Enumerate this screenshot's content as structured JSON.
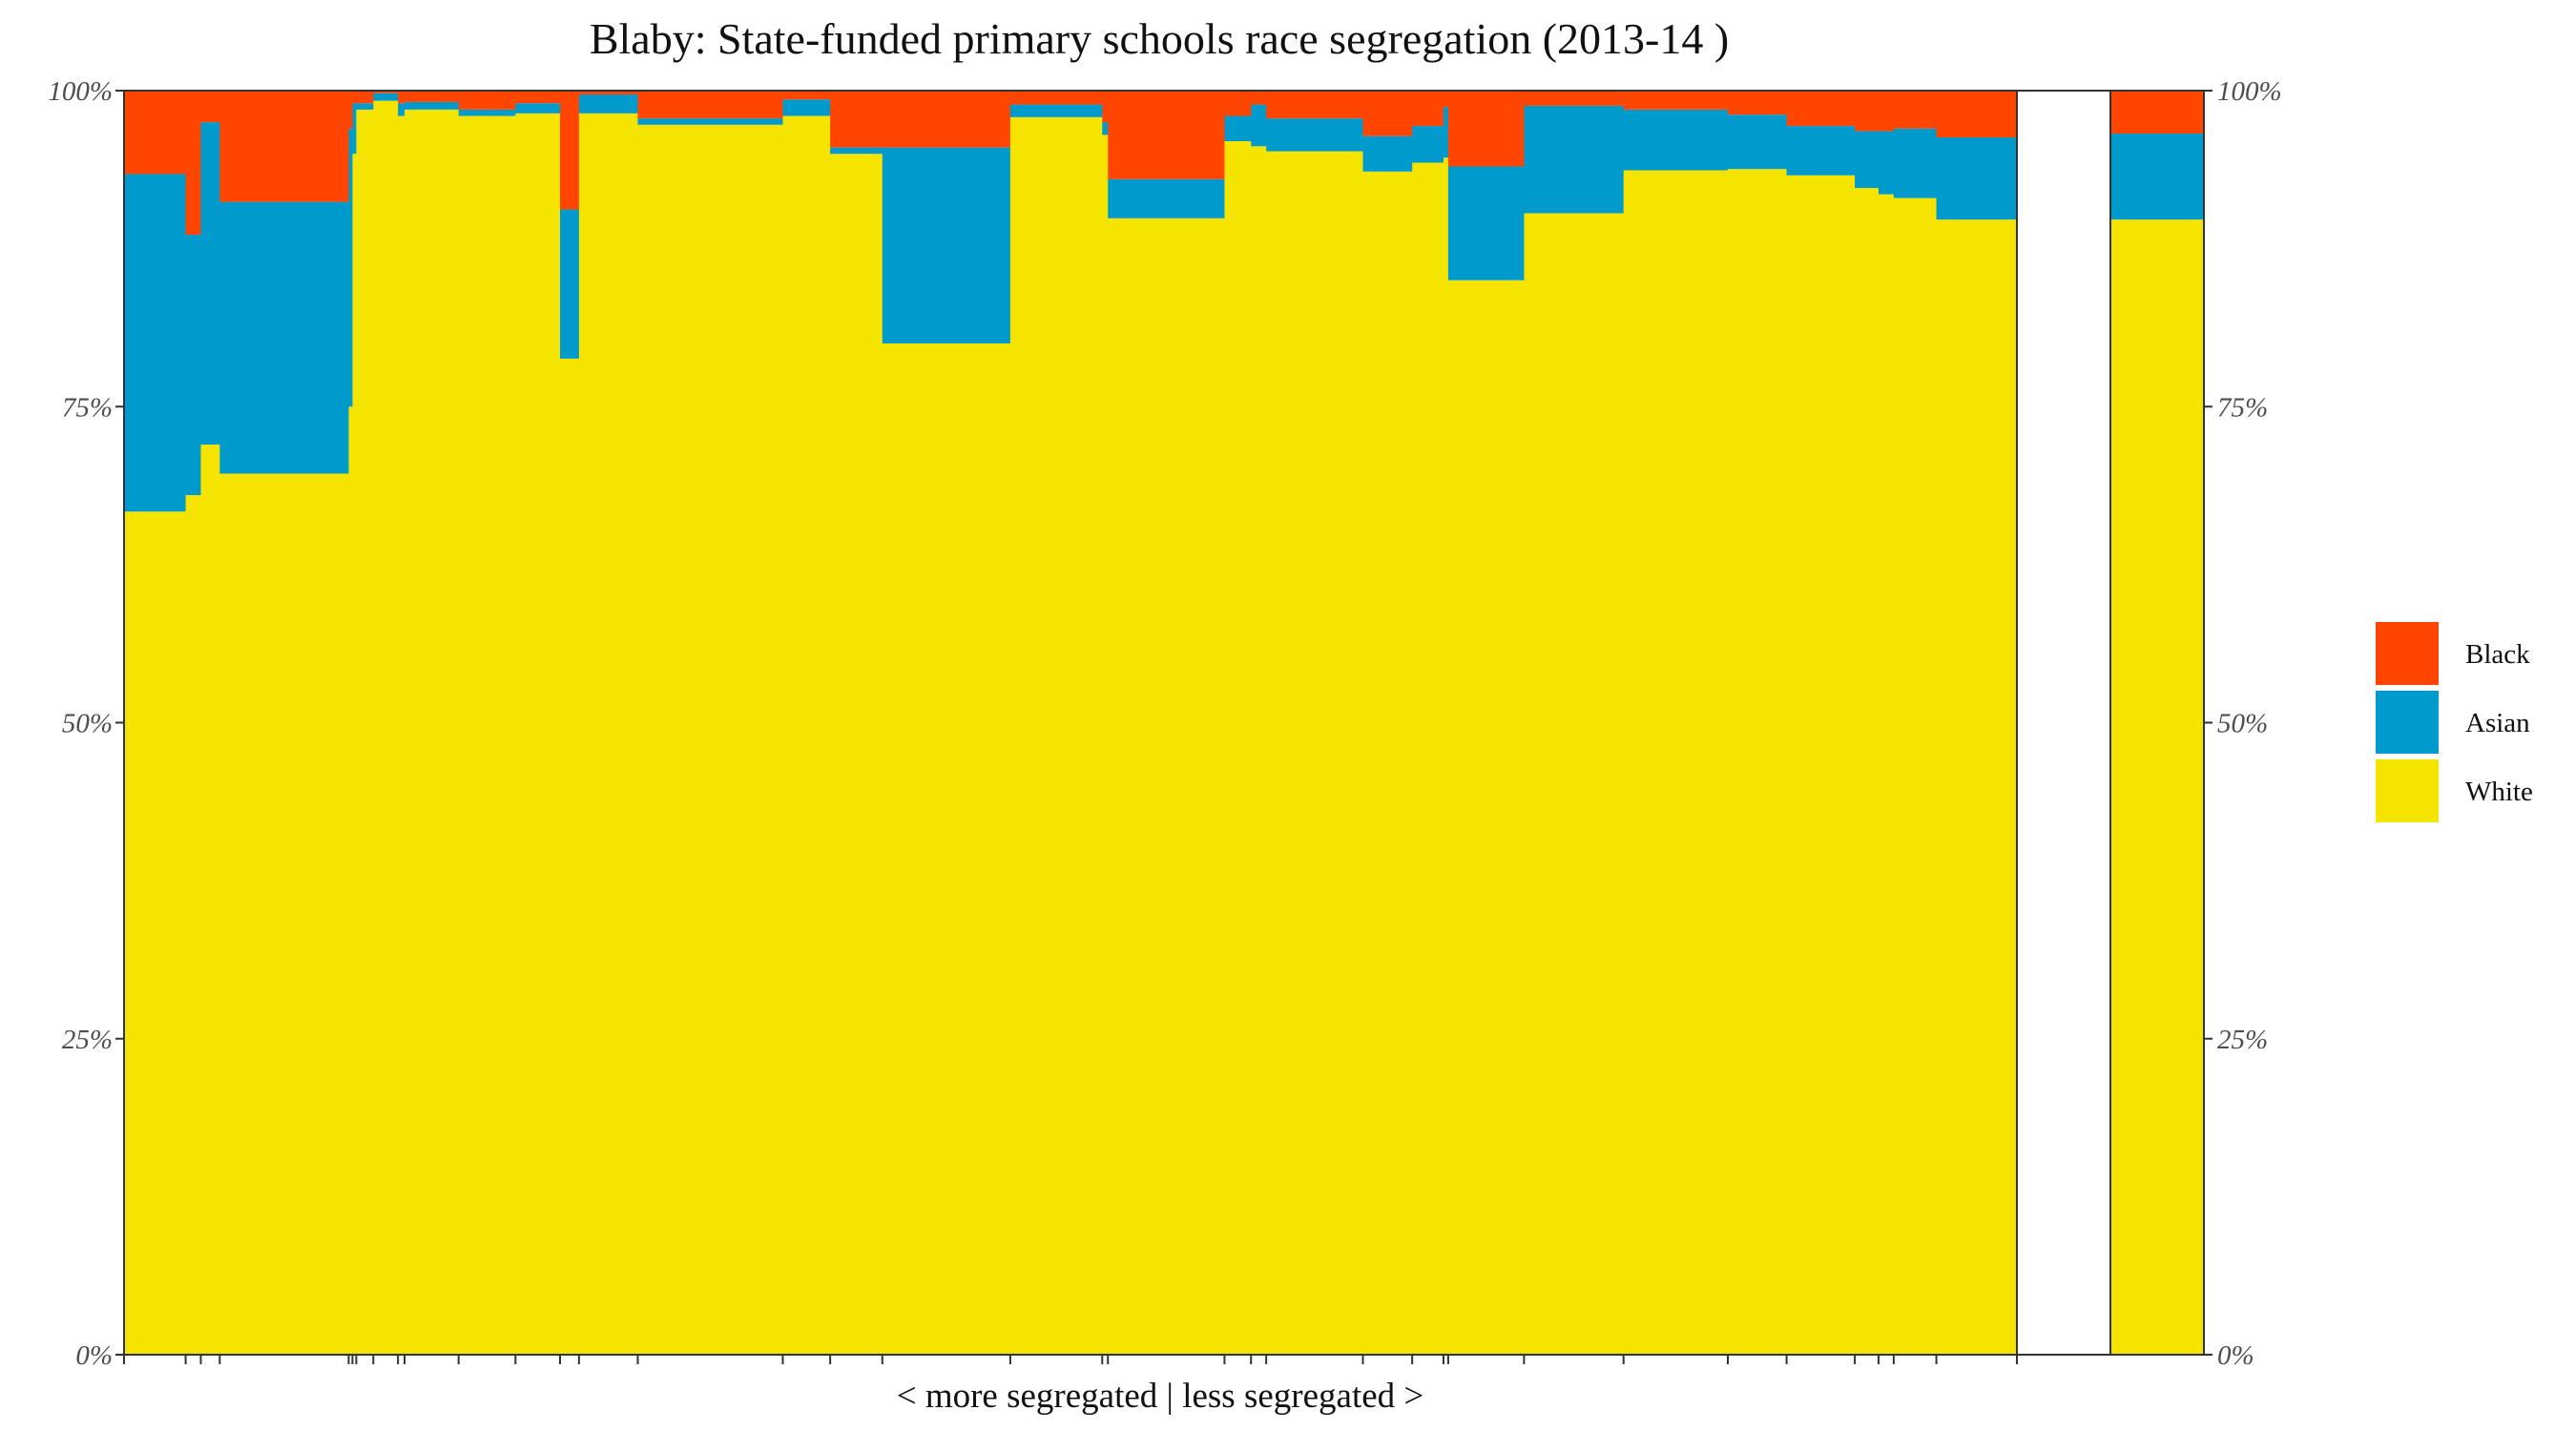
{
  "chart_data": {
    "type": "bar",
    "stacked": true,
    "variable_width": true,
    "title": "Blaby: State-funded primary schools race segregation (2013-14 )",
    "xlabel": "< more segregated | less segregated >",
    "ylabel": "",
    "ylim": [
      0,
      100
    ],
    "y_ticks": [
      "0%",
      "25%",
      "50%",
      "75%",
      "100%"
    ],
    "grid": false,
    "legend_position": "right",
    "series_order": [
      "White",
      "Asian",
      "Black"
    ],
    "legend": [
      {
        "name": "Black",
        "color": "#FF4500"
      },
      {
        "name": "Asian",
        "color": "#009ACD"
      },
      {
        "name": "White",
        "color": "#F5E400"
      }
    ],
    "schools": [
      {
        "width": 0.065,
        "white": 66.7,
        "asian": 26.7,
        "black": 6.6
      },
      {
        "width": 0.016,
        "white": 68.0,
        "asian": 20.6,
        "black": 11.4
      },
      {
        "width": 0.02,
        "white": 72.0,
        "asian": 25.5,
        "black": 2.5
      },
      {
        "width": 0.136,
        "white": 69.7,
        "asian": 21.5,
        "black": 8.8
      },
      {
        "width": 0.004,
        "white": 75.0,
        "asian": 22.0,
        "black": 3.0
      },
      {
        "width": 0.004,
        "white": 95.0,
        "asian": 4.0,
        "black": 1.0
      },
      {
        "width": 0.018,
        "white": 98.5,
        "asian": 0.5,
        "black": 1.0
      },
      {
        "width": 0.026,
        "white": 99.2,
        "asian": 0.6,
        "black": 0.2
      },
      {
        "width": 0.007,
        "white": 98.0,
        "asian": 1.0,
        "black": 1.0
      },
      {
        "width": 0.057,
        "white": 98.5,
        "asian": 0.6,
        "black": 0.9
      },
      {
        "width": 0.06,
        "white": 98.0,
        "asian": 0.5,
        "black": 1.5
      },
      {
        "width": 0.047,
        "white": 98.2,
        "asian": 0.8,
        "black": 1.0
      },
      {
        "width": 0.02,
        "white": 78.8,
        "asian": 11.8,
        "black": 9.4
      },
      {
        "width": 0.062,
        "white": 98.2,
        "asian": 1.5,
        "black": 0.3
      },
      {
        "width": 0.153,
        "white": 97.3,
        "asian": 0.5,
        "black": 2.2
      },
      {
        "width": 0.05,
        "white": 98.0,
        "asian": 1.3,
        "black": 0.7
      },
      {
        "width": 0.055,
        "white": 95.0,
        "asian": 0.5,
        "black": 4.5
      },
      {
        "width": 0.135,
        "white": 80.0,
        "asian": 15.5,
        "black": 4.5
      },
      {
        "width": 0.097,
        "white": 97.9,
        "asian": 1.0,
        "black": 1.1
      },
      {
        "width": 0.006,
        "white": 96.5,
        "asian": 1.0,
        "black": 2.5
      },
      {
        "width": 0.123,
        "white": 89.9,
        "asian": 3.1,
        "black": 7.0
      },
      {
        "width": 0.028,
        "white": 96.0,
        "asian": 2.0,
        "black": 2.0
      },
      {
        "width": 0.016,
        "white": 95.6,
        "asian": 3.3,
        "black": 1.1
      },
      {
        "width": 0.102,
        "white": 95.2,
        "asian": 2.6,
        "black": 2.2
      },
      {
        "width": 0.052,
        "white": 93.6,
        "asian": 2.8,
        "black": 3.6
      },
      {
        "width": 0.033,
        "white": 94.3,
        "asian": 2.9,
        "black": 2.8
      },
      {
        "width": 0.005,
        "white": 94.7,
        "asian": 4.0,
        "black": 1.3
      },
      {
        "width": 0.08,
        "white": 85.0,
        "asian": 9.0,
        "black": 6.0
      },
      {
        "width": 0.105,
        "white": 90.3,
        "asian": 8.5,
        "black": 1.2
      },
      {
        "width": 0.11,
        "white": 93.7,
        "asian": 4.8,
        "black": 1.5
      },
      {
        "width": 0.062,
        "white": 93.8,
        "asian": 4.3,
        "black": 1.9
      },
      {
        "width": 0.072,
        "white": 93.3,
        "asian": 3.9,
        "black": 2.8
      },
      {
        "width": 0.025,
        "white": 92.3,
        "asian": 4.5,
        "black": 3.2
      },
      {
        "width": 0.016,
        "white": 91.8,
        "asian": 5.0,
        "black": 3.2
      },
      {
        "width": 0.045,
        "white": 91.5,
        "asian": 5.5,
        "black": 3.0
      },
      {
        "width": 0.085,
        "white": 89.8,
        "asian": 6.5,
        "black": 3.7
      }
    ],
    "overall": {
      "white": 89.8,
      "asian": 6.8,
      "black": 3.4
    }
  }
}
